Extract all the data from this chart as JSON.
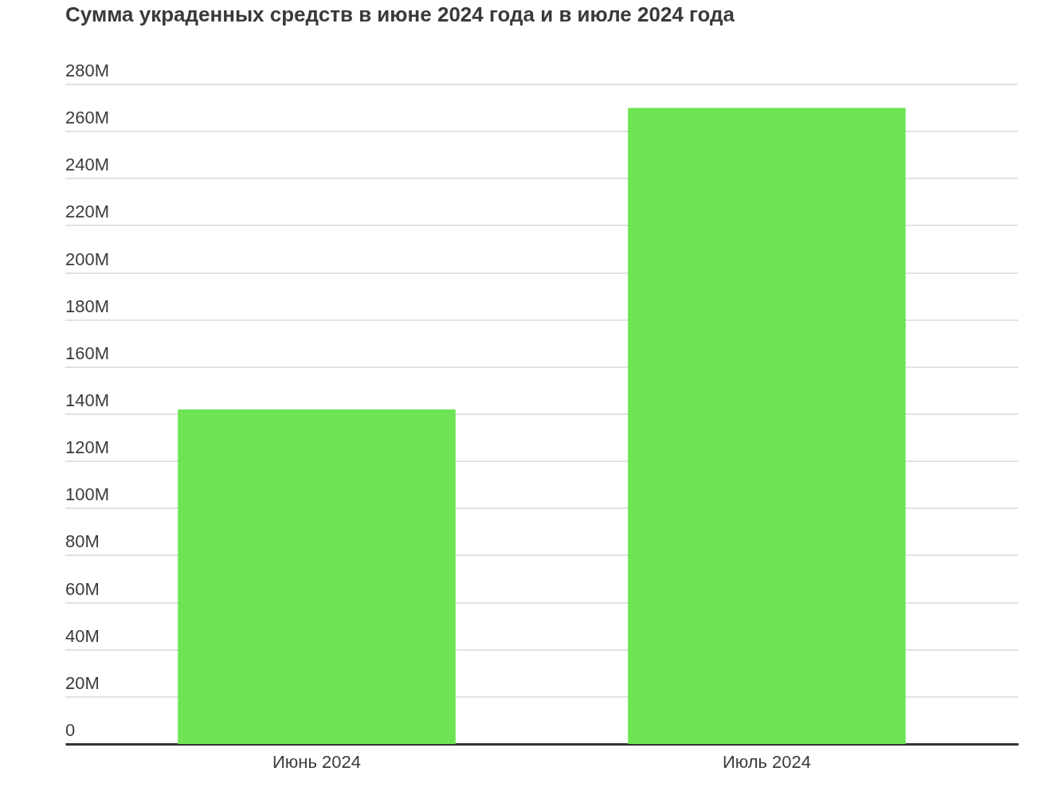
{
  "chart_data": {
    "type": "bar",
    "title": "Сумма украденных средств в июне 2024 года и в июле 2024 года",
    "categories": [
      "Июнь 2024",
      "Июль 2024"
    ],
    "values": [
      142,
      270
    ],
    "color": "#6ee353",
    "ylim": [
      0,
      280
    ],
    "yticks": [
      {
        "value": 0,
        "label": "0"
      },
      {
        "value": 20,
        "label": "20M"
      },
      {
        "value": 40,
        "label": "40M"
      },
      {
        "value": 60,
        "label": "60M"
      },
      {
        "value": 80,
        "label": "80M"
      },
      {
        "value": 100,
        "label": "100M"
      },
      {
        "value": 120,
        "label": "120M"
      },
      {
        "value": 140,
        "label": "140M"
      },
      {
        "value": 160,
        "label": "160M"
      },
      {
        "value": 180,
        "label": "180M"
      },
      {
        "value": 200,
        "label": "200M"
      },
      {
        "value": 220,
        "label": "220M"
      },
      {
        "value": 240,
        "label": "240M"
      },
      {
        "value": 260,
        "label": "260M"
      },
      {
        "value": 280,
        "label": "280M"
      }
    ],
    "grid": "y"
  }
}
